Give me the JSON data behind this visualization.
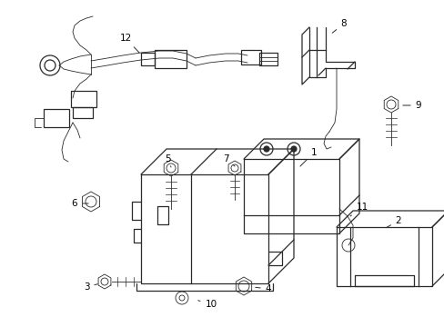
{
  "background_color": "#ffffff",
  "line_color": "#2a2a2a",
  "text_color": "#000000",
  "figsize": [
    4.89,
    3.6
  ],
  "dpi": 100,
  "lw": 0.9,
  "thin_lw": 0.6
}
